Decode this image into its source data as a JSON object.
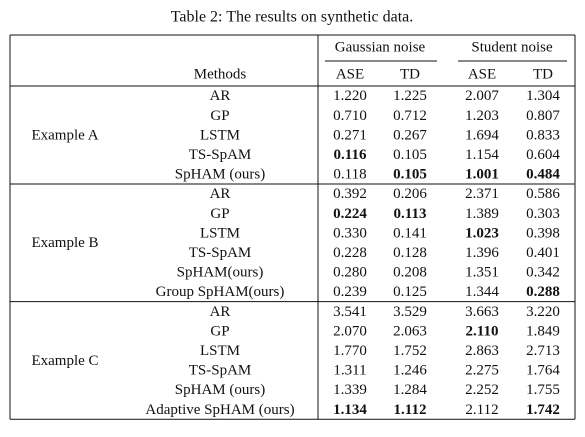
{
  "caption": "Table 2: The results on synthetic data.",
  "header": {
    "groups": [
      "Gaussian noise",
      "Student noise"
    ],
    "columns": [
      "Methods",
      "ASE",
      "TD",
      "ASE",
      "TD"
    ]
  },
  "table": {
    "groups": [
      {
        "label": "Example A",
        "rows": [
          {
            "method": "AR",
            "values": [
              "1.220",
              "1.225",
              "2.007",
              "1.304"
            ],
            "bold": []
          },
          {
            "method": "GP",
            "values": [
              "0.710",
              "0.712",
              "1.203",
              "0.807"
            ],
            "bold": []
          },
          {
            "method": "LSTM",
            "values": [
              "0.271",
              "0.267",
              "1.694",
              "0.833"
            ],
            "bold": []
          },
          {
            "method": "TS-SpAM",
            "values": [
              "0.116",
              "0.105",
              "1.154",
              "0.604"
            ],
            "bold": [
              0
            ]
          },
          {
            "method": "SpHAM (ours)",
            "values": [
              "0.118",
              "0.105",
              "1.001",
              "0.484"
            ],
            "bold": [
              1,
              2,
              3
            ]
          }
        ]
      },
      {
        "label": "Example B",
        "rows": [
          {
            "method": "AR",
            "values": [
              "0.392",
              "0.206",
              "2.371",
              "0.586"
            ],
            "bold": []
          },
          {
            "method": "GP",
            "values": [
              "0.224",
              "0.113",
              "1.389",
              "0.303"
            ],
            "bold": [
              0,
              1
            ]
          },
          {
            "method": "LSTM",
            "values": [
              "0.330",
              "0.141",
              "1.023",
              "0.398"
            ],
            "bold": [
              2
            ]
          },
          {
            "method": "TS-SpAM",
            "values": [
              "0.228",
              "0.128",
              "1.396",
              "0.401"
            ],
            "bold": []
          },
          {
            "method": "SpHAM(ours)",
            "values": [
              "0.280",
              "0.208",
              "1.351",
              "0.342"
            ],
            "bold": []
          },
          {
            "method": "Group SpHAM(ours)",
            "values": [
              "0.239",
              "0.125",
              "1.344",
              "0.288"
            ],
            "bold": [
              3
            ]
          }
        ]
      },
      {
        "label": "Example C",
        "rows": [
          {
            "method": "AR",
            "values": [
              "3.541",
              "3.529",
              "3.663",
              "3.220"
            ],
            "bold": []
          },
          {
            "method": "GP",
            "values": [
              "2.070",
              "2.063",
              "2.110",
              "1.849"
            ],
            "bold": [
              2
            ]
          },
          {
            "method": "LSTM",
            "values": [
              "1.770",
              "1.752",
              "2.863",
              "2.713"
            ],
            "bold": []
          },
          {
            "method": "TS-SpAM",
            "values": [
              "1.311",
              "1.246",
              "2.275",
              "1.764"
            ],
            "bold": []
          },
          {
            "method": "SpHAM (ours)",
            "values": [
              "1.339",
              "1.284",
              "2.252",
              "1.755"
            ],
            "bold": []
          },
          {
            "method": "Adaptive SpHAM (ours)",
            "values": [
              "1.134",
              "1.112",
              "2.112",
              "1.742"
            ],
            "bold": [
              0,
              1,
              3
            ]
          }
        ]
      }
    ]
  }
}
